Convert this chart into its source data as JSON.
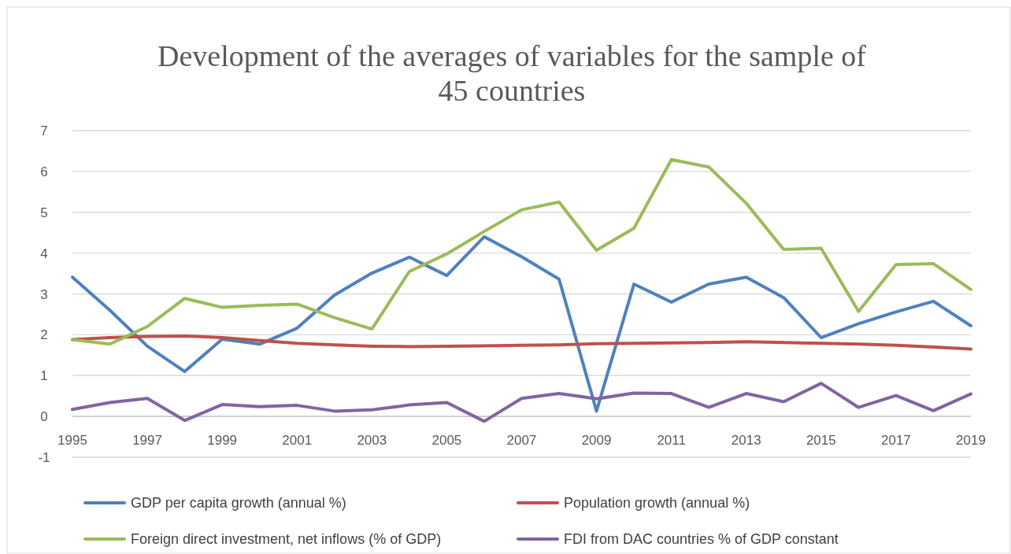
{
  "chart_data": {
    "type": "line",
    "title": "Development of the averages of variables for the sample of 45 countries",
    "x": [
      1995,
      1996,
      1997,
      1998,
      1999,
      2000,
      2001,
      2002,
      2003,
      2004,
      2005,
      2006,
      2007,
      2008,
      2009,
      2010,
      2011,
      2012,
      2013,
      2014,
      2015,
      2016,
      2017,
      2018,
      2019
    ],
    "xlim": [
      1995,
      2019
    ],
    "xticks": [
      1995,
      1997,
      1999,
      2001,
      2003,
      2005,
      2007,
      2009,
      2011,
      2013,
      2015,
      2017,
      2019
    ],
    "ylim": [
      -1,
      7
    ],
    "yticks": [
      -1,
      0,
      1,
      2,
      3,
      4,
      5,
      6,
      7
    ],
    "grid": "y",
    "legend": "bottom",
    "line_style": "solid",
    "marker": "none",
    "series": [
      {
        "name": "GDP per capita growth (annual %)",
        "color": "#4f81bd",
        "values": [
          3.41,
          2.6,
          1.72,
          1.1,
          1.89,
          1.77,
          2.16,
          2.97,
          3.51,
          3.9,
          3.45,
          4.4,
          3.91,
          3.36,
          0.13,
          3.24,
          2.8,
          3.24,
          3.41,
          2.91,
          1.93,
          2.27,
          2.56,
          2.82,
          2.22
        ]
      },
      {
        "name": "Population growth (annual %)",
        "color": "#c0504d",
        "values": [
          1.88,
          1.93,
          1.96,
          1.97,
          1.93,
          1.86,
          1.79,
          1.75,
          1.72,
          1.71,
          1.72,
          1.73,
          1.74,
          1.75,
          1.78,
          1.79,
          1.8,
          1.81,
          1.83,
          1.81,
          1.79,
          1.77,
          1.74,
          1.7,
          1.65
        ]
      },
      {
        "name": "Foreign direct investment, net inflows (% of GDP)",
        "color": "#9bbb59",
        "values": [
          1.88,
          1.77,
          2.2,
          2.89,
          2.67,
          2.72,
          2.75,
          2.42,
          2.14,
          3.55,
          3.98,
          4.53,
          5.06,
          5.25,
          4.07,
          4.61,
          6.29,
          6.11,
          5.22,
          4.09,
          4.12,
          2.57,
          3.72,
          3.74,
          3.11
        ]
      },
      {
        "name": "FDI from DAC countries % of GDP constant",
        "color": "#8064a2",
        "values": [
          0.17,
          0.34,
          0.44,
          -0.1,
          0.29,
          0.24,
          0.27,
          0.13,
          0.16,
          0.28,
          0.34,
          -0.12,
          0.44,
          0.56,
          0.43,
          0.57,
          0.56,
          0.22,
          0.56,
          0.36,
          0.81,
          0.22,
          0.51,
          0.14,
          0.55
        ]
      }
    ]
  }
}
